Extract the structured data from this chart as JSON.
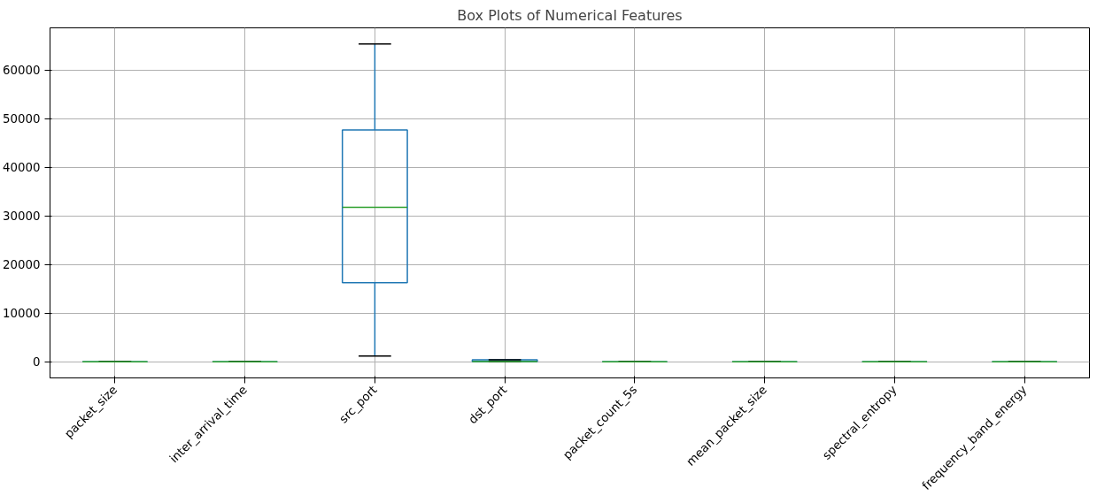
{
  "chart_data": {
    "type": "box",
    "title": "Box Plots of Numerical Features",
    "categories": [
      "packet_size",
      "inter_arrival_time",
      "src_port",
      "dst_port",
      "packet_count_5s",
      "mean_packet_size",
      "spectral_entropy",
      "frequency_band_energy"
    ],
    "boxes": [
      {
        "low": 0,
        "q1": 0,
        "median": 0,
        "q3": 0,
        "high": 0
      },
      {
        "low": 0,
        "q1": 0,
        "median": 0,
        "q3": 0,
        "high": 0
      },
      {
        "low": 1200,
        "q1": 16300,
        "median": 31800,
        "q3": 47700,
        "high": 65400
      },
      {
        "low": 0,
        "q1": 50,
        "median": 80,
        "q3": 440,
        "high": 440
      },
      {
        "low": 0,
        "q1": 0,
        "median": 0,
        "q3": 0,
        "high": 0
      },
      {
        "low": 0,
        "q1": 0,
        "median": 0,
        "q3": 0,
        "high": 0
      },
      {
        "low": 0,
        "q1": 0,
        "median": 0,
        "q3": 0,
        "high": 0
      },
      {
        "low": 0,
        "q1": 0,
        "median": 0,
        "q3": 0,
        "high": 0
      }
    ],
    "color": "#1f77b4",
    "ylim": [
      -3300,
      68700
    ],
    "yticks": [
      0,
      10000,
      20000,
      30000,
      40000,
      50000,
      60000
    ],
    "grid": true
  }
}
